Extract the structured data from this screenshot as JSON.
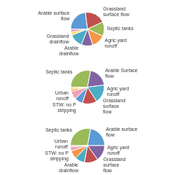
{
  "chart_data": [
    {
      "type": "pie",
      "categories": [
        "Arable surface\nflow",
        "Grassland\nsurface flow",
        "Septic tanks",
        "Agric yard\nrunoff",
        "Arable\ndrainflow",
        "Grassland\ndrainflow",
        null,
        null
      ],
      "values": [
        23,
        20,
        14,
        13,
        11,
        13,
        3,
        3
      ],
      "colors": [
        "#5b9bd5",
        "#c0504d",
        "#9bbb59",
        "#f79646",
        "#8064a2",
        "#4bacc6",
        "#ffd966",
        "#f1a0b4"
      ]
    },
    {
      "type": "pie",
      "categories": [
        "Septic tanks",
        "Arable Surface\nflow",
        "Agric yard\nrunoff",
        "Grassland\nsurface\nflow",
        "STW: no P\nstripping",
        "Urban\nrunoff",
        null,
        null
      ],
      "values": [
        28,
        20,
        18,
        14,
        8,
        8,
        2,
        2
      ],
      "colors": [
        "#9bbb59",
        "#8064a2",
        "#4bacc6",
        "#c0504d",
        "#5b9bd5",
        "#f1a0b4",
        "#f79646",
        "#ffd966"
      ]
    },
    {
      "type": "pie",
      "categories": [
        "Septic tanks",
        "Arable surface\nflow",
        "Agric yard\nrunoff",
        "Grassland\nsurface\nflow",
        "Arable\ndrainflow",
        "STW: no P\nstripping",
        "Urban\nrunoff",
        null
      ],
      "values": [
        28,
        22,
        15,
        13,
        9,
        8,
        4,
        1
      ],
      "colors": [
        "#9bbb59",
        "#5b9bd5",
        "#8064a2",
        "#c0504d",
        "#4bacc6",
        "#f79646",
        "#f1a0b4",
        "#d99694"
      ]
    }
  ]
}
